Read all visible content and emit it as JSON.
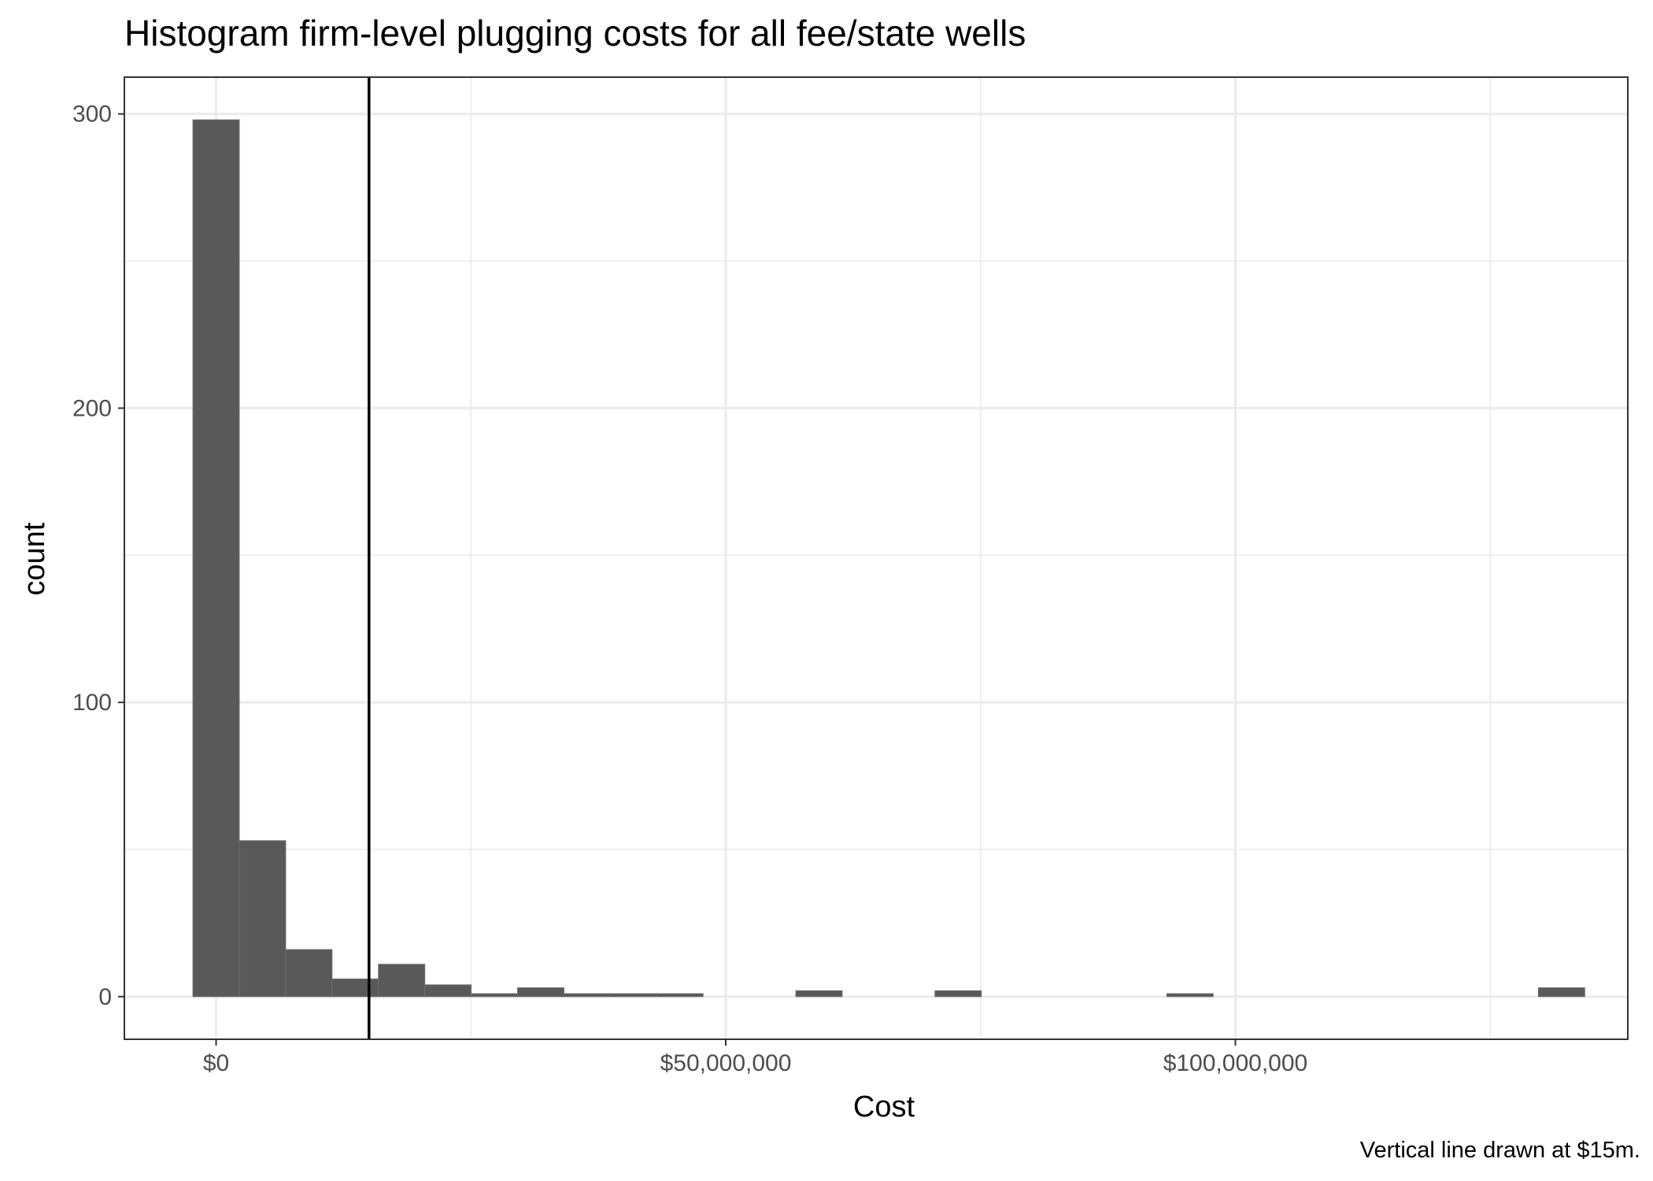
{
  "chart_data": {
    "type": "bar",
    "title": "Histogram firm-level plugging costs for all fee/state wells",
    "xlabel": "Cost",
    "ylabel": "count",
    "caption": "Vertical line drawn at $15m.",
    "xlim": [
      -9000000,
      138500000
    ],
    "ylim": [
      -14.5,
      312.5
    ],
    "bin_width": 4550000,
    "x_major_ticks": [
      0,
      50000000,
      100000000
    ],
    "x_tick_labels": [
      "$0",
      "$50,000,000",
      "$100,000,000"
    ],
    "x_minor_ticks": [
      25000000,
      75000000,
      125000000
    ],
    "y_major_ticks": [
      0,
      100,
      200,
      300
    ],
    "y_tick_labels": [
      "0",
      "100",
      "200",
      "300"
    ],
    "y_minor_ticks": [
      50,
      150,
      250
    ],
    "vline_x": 15000000,
    "grid": true,
    "bins": [
      {
        "center": 0,
        "count": 298
      },
      {
        "center": 4550000,
        "count": 53
      },
      {
        "center": 9100000,
        "count": 16
      },
      {
        "center": 13650000,
        "count": 6
      },
      {
        "center": 18200000,
        "count": 11
      },
      {
        "center": 22750000,
        "count": 4
      },
      {
        "center": 27300000,
        "count": 1
      },
      {
        "center": 31850000,
        "count": 3
      },
      {
        "center": 36400000,
        "count": 1
      },
      {
        "center": 40950000,
        "count": 1
      },
      {
        "center": 45500000,
        "count": 1
      },
      {
        "center": 59150000,
        "count": 2
      },
      {
        "center": 72800000,
        "count": 2
      },
      {
        "center": 95550000,
        "count": 1
      },
      {
        "center": 132000000,
        "count": 3
      }
    ]
  }
}
